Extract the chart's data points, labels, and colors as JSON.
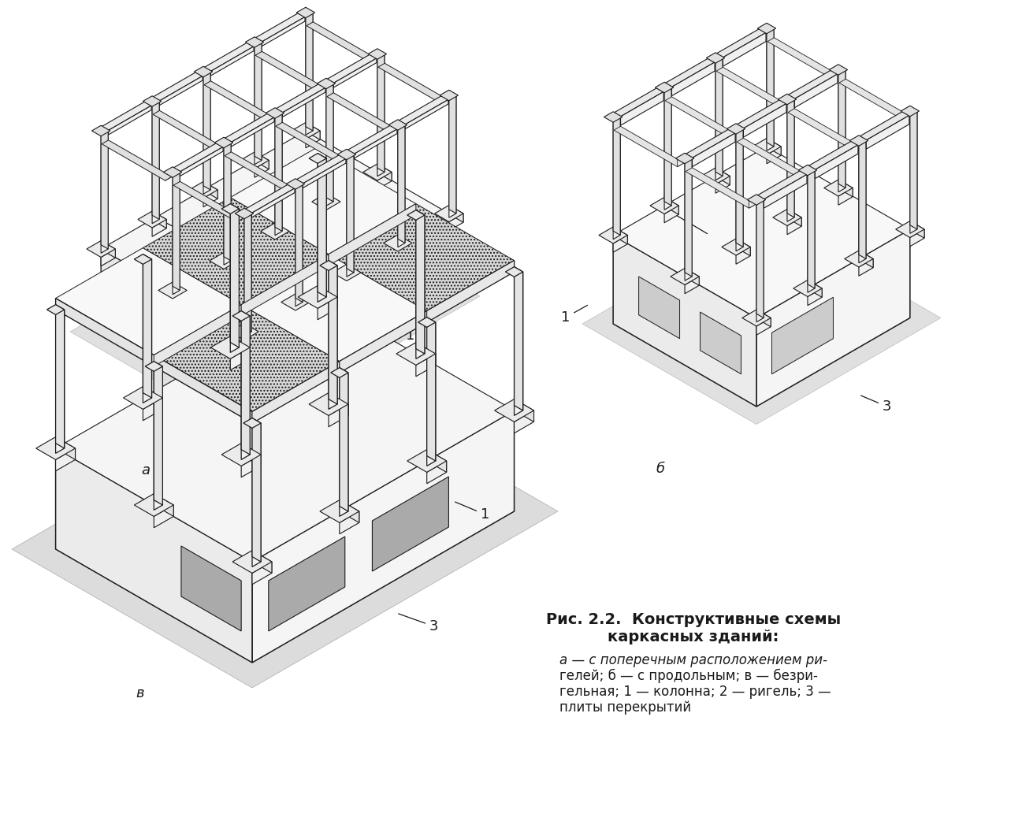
{
  "title_line1": "Рис. 2.2.  Конструктивные схемы",
  "title_line2": "каркасных зданий:",
  "desc_line1": "а — с поперечным расположением ри-",
  "desc_line2": "гелей; б — с продольным; в — безри-",
  "desc_line3": "гельная; 1 — колонна; 2 — ригель; 3 —",
  "desc_line4": "плиты перекрытий",
  "label_a": "а",
  "label_b": "б",
  "label_v": "в",
  "bg_color": "#ffffff",
  "lc": "#1a1a1a",
  "title_fontsize": 14,
  "desc_fontsize": 12
}
